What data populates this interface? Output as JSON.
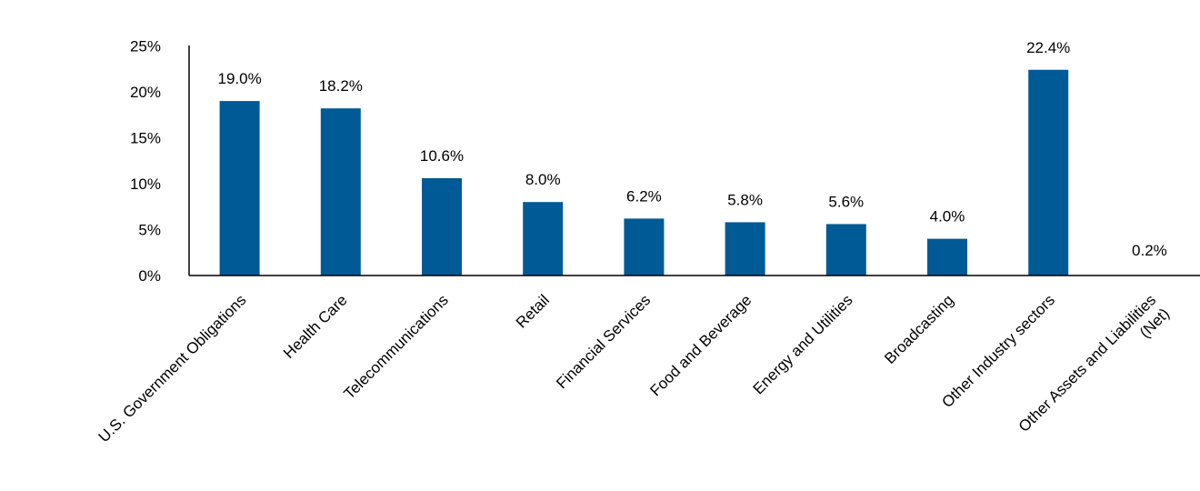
{
  "chart_data": {
    "type": "bar",
    "categories": [
      "U.S. Government Obligations",
      "Health Care",
      "Telecommunications",
      "Retail",
      "Financial Services",
      "Food and Beverage",
      "Energy and Utilities",
      "Broadcasting",
      "Other Industry sectors",
      [
        "Other Assets and Liabilities",
        "(Net)"
      ]
    ],
    "values": [
      19.0,
      18.2,
      10.6,
      8.0,
      6.2,
      5.8,
      5.6,
      4.0,
      22.4,
      0.2
    ],
    "data_labels": [
      "19.0%",
      "18.2%",
      "10.6%",
      "8.0%",
      "6.2%",
      "5.8%",
      "5.6%",
      "4.0%",
      "22.4%",
      "0.2%"
    ],
    "ylim": [
      0,
      25
    ],
    "yticks": [
      0,
      5,
      10,
      15,
      20,
      25
    ],
    "ytick_labels": [
      "0%",
      "5%",
      "10%",
      "15%",
      "20%",
      "25%"
    ],
    "bar_color": "#005A96",
    "grid": false,
    "legend": "none"
  }
}
